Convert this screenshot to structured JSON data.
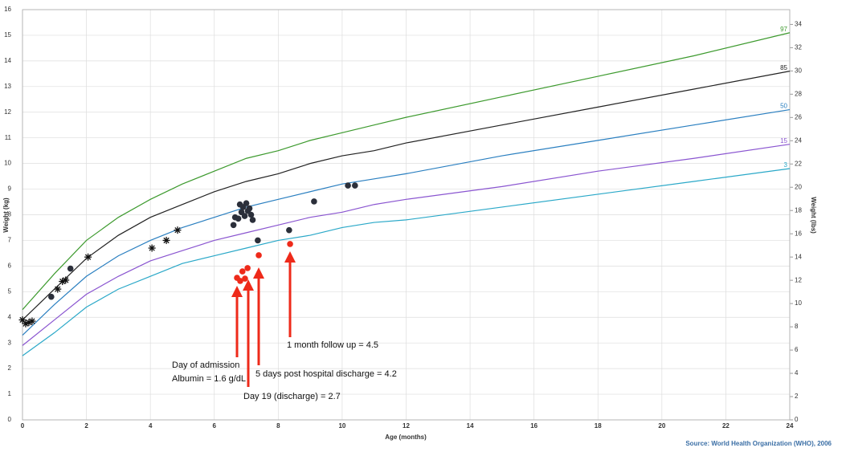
{
  "chart_data": {
    "type": "line",
    "x_label": "Age (months)",
    "y_label": "Weight (kg)",
    "y2_label": "Weight (lbs)",
    "source": "Source: World Health Organization (WHO), 2006",
    "xlim": [
      0,
      24
    ],
    "xticks": [
      0,
      2,
      4,
      6,
      8,
      10,
      12,
      14,
      16,
      18,
      20,
      22,
      24
    ],
    "ylim": [
      0,
      16
    ],
    "yticks": [
      0,
      1,
      2,
      3,
      4,
      5,
      6,
      7,
      8,
      9,
      10,
      11,
      12,
      13,
      14,
      15,
      16
    ],
    "y2lim": [
      0,
      35.27
    ],
    "y2ticks": [
      0,
      2,
      4,
      6,
      8,
      10,
      12,
      14,
      16,
      18,
      20,
      22,
      24,
      26,
      28,
      30,
      32,
      34
    ],
    "grid": true,
    "x": [
      0,
      1,
      2,
      3,
      4,
      5,
      6,
      7,
      8,
      9,
      10,
      11,
      12,
      15,
      18,
      21,
      24
    ],
    "series": [
      {
        "name": "97",
        "color": "#3d9a2e",
        "values": [
          4.3,
          5.7,
          7.0,
          7.9,
          8.6,
          9.2,
          9.7,
          10.2,
          10.5,
          10.9,
          11.2,
          11.5,
          11.8,
          12.6,
          13.4,
          14.2,
          15.1
        ]
      },
      {
        "name": "85",
        "color": "#222222",
        "values": [
          3.9,
          5.1,
          6.3,
          7.2,
          7.9,
          8.4,
          8.9,
          9.3,
          9.6,
          10.0,
          10.3,
          10.5,
          10.8,
          11.5,
          12.2,
          12.9,
          13.6
        ]
      },
      {
        "name": "50",
        "color": "#2a7fc0",
        "values": [
          3.3,
          4.5,
          5.6,
          6.4,
          7.0,
          7.5,
          7.9,
          8.3,
          8.6,
          8.9,
          9.2,
          9.4,
          9.6,
          10.3,
          10.9,
          11.5,
          12.1
        ]
      },
      {
        "name": "15",
        "color": "#8a55d0",
        "values": [
          2.9,
          3.9,
          4.9,
          5.6,
          6.2,
          6.6,
          7.0,
          7.3,
          7.6,
          7.9,
          8.1,
          8.4,
          8.6,
          9.1,
          9.7,
          10.2,
          10.75
        ]
      },
      {
        "name": "3",
        "color": "#2aa8c8",
        "values": [
          2.5,
          3.4,
          4.4,
          5.1,
          5.6,
          6.1,
          6.4,
          6.7,
          7.0,
          7.2,
          7.5,
          7.7,
          7.8,
          8.3,
          8.8,
          9.3,
          9.8
        ]
      }
    ],
    "points": [
      {
        "marker": "star",
        "color": "#111111",
        "x": [
          0.0,
          0.1,
          0.2,
          0.3,
          1.1,
          1.25,
          1.35,
          2.05,
          4.05,
          4.5,
          4.85
        ],
        "y": [
          3.9,
          3.75,
          3.8,
          3.85,
          5.1,
          5.4,
          5.45,
          6.35,
          6.7,
          7.0,
          7.4
        ]
      },
      {
        "marker": "circle",
        "color": "#2b2f3a",
        "x": [
          0.9,
          1.5,
          6.6,
          6.65,
          6.75,
          6.8,
          6.85,
          6.9,
          6.95,
          7.0,
          7.05,
          7.1,
          7.15,
          7.2,
          7.36,
          8.34,
          9.12,
          10.18,
          10.4
        ],
        "y": [
          4.8,
          5.9,
          7.6,
          7.9,
          7.85,
          8.4,
          8.1,
          8.3,
          7.95,
          8.45,
          8.15,
          8.25,
          8.0,
          7.8,
          7.0,
          7.4,
          8.52,
          9.14,
          9.14
        ]
      },
      {
        "marker": "circle",
        "color": "#ee2a1a",
        "x": [
          6.71,
          6.81,
          6.88,
          6.96,
          7.04,
          7.39,
          8.37
        ],
        "y": [
          5.54,
          5.42,
          5.79,
          5.51,
          5.92,
          6.42,
          6.86
        ]
      }
    ],
    "annotations": [
      "Day of admission",
      "Albumin = 1.6 g/dL",
      "5 days post hospital discharge  = 4.2",
      "Day 19 (discharge)  = 2.7",
      "1 month follow up = 4.5"
    ]
  }
}
